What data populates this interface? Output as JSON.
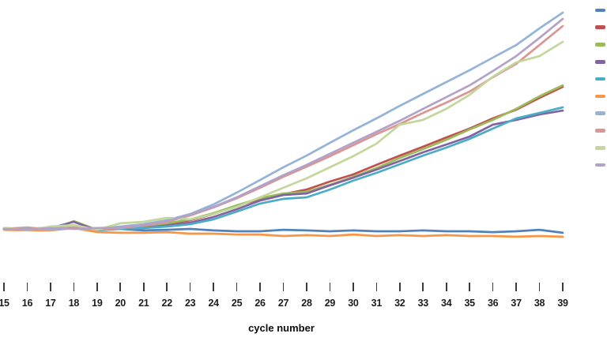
{
  "chart_data": {
    "type": "line",
    "title": "",
    "xlabel": "cycle number",
    "ylabel": "",
    "x": [
      15,
      16,
      17,
      18,
      19,
      20,
      21,
      22,
      23,
      24,
      25,
      26,
      27,
      28,
      29,
      30,
      31,
      32,
      33,
      34,
      35,
      36,
      37,
      38,
      39
    ],
    "xlim": [
      15,
      39
    ],
    "ylim": [
      -0.06,
      1.06
    ],
    "y_units": "relative fluorescence (arbitrary units; y-axis not shown in image)",
    "grid": false,
    "legend_position": "right-edge",
    "legend_labels_visible": false,
    "series": [
      {
        "id": "blue",
        "color": "#4F81BD",
        "role": "flat-baseline",
        "values": [
          0.0,
          0.0,
          -0.004,
          0.004,
          -0.004,
          0.0,
          -0.007,
          -0.004,
          0.0,
          -0.007,
          -0.011,
          -0.011,
          -0.004,
          -0.007,
          -0.011,
          -0.007,
          -0.011,
          -0.011,
          -0.007,
          -0.011,
          -0.011,
          -0.015,
          -0.011,
          -0.004,
          -0.018
        ]
      },
      {
        "id": "red",
        "color": "#C0504D",
        "role": "amplifying",
        "values": [
          0.0,
          0.004,
          0.0,
          0.007,
          0.0,
          0.004,
          0.011,
          0.022,
          0.04,
          0.069,
          0.106,
          0.139,
          0.161,
          0.182,
          0.219,
          0.252,
          0.296,
          0.339,
          0.38,
          0.423,
          0.464,
          0.511,
          0.551,
          0.606,
          0.657
        ]
      },
      {
        "id": "green",
        "color": "#9BBB59",
        "role": "amplifying",
        "values": [
          0.0,
          0.007,
          -0.004,
          0.036,
          -0.004,
          0.007,
          0.015,
          0.026,
          0.044,
          0.073,
          0.109,
          0.142,
          0.164,
          0.172,
          0.204,
          0.241,
          0.281,
          0.328,
          0.369,
          0.412,
          0.46,
          0.504,
          0.555,
          0.613,
          0.664
        ]
      },
      {
        "id": "purple",
        "color": "#8064A2",
        "role": "amplifying",
        "values": [
          0.0,
          -0.004,
          0.004,
          0.033,
          -0.007,
          0.007,
          0.004,
          0.015,
          0.029,
          0.055,
          0.091,
          0.131,
          0.157,
          0.164,
          0.201,
          0.237,
          0.274,
          0.314,
          0.354,
          0.39,
          0.427,
          0.482,
          0.504,
          0.529,
          0.547
        ]
      },
      {
        "id": "cyan",
        "color": "#4BACC6",
        "role": "amplifying",
        "values": [
          0.0,
          0.0,
          -0.004,
          0.004,
          -0.007,
          0.0,
          0.004,
          0.011,
          0.022,
          0.044,
          0.08,
          0.117,
          0.139,
          0.146,
          0.182,
          0.223,
          0.259,
          0.299,
          0.339,
          0.376,
          0.416,
          0.464,
          0.511,
          0.536,
          0.562
        ]
      },
      {
        "id": "orange",
        "color": "#F79646",
        "role": "flat-baseline",
        "values": [
          -0.004,
          -0.007,
          -0.007,
          0.004,
          -0.015,
          -0.018,
          -0.018,
          -0.015,
          -0.022,
          -0.022,
          -0.026,
          -0.026,
          -0.033,
          -0.029,
          -0.033,
          -0.026,
          -0.033,
          -0.029,
          -0.033,
          -0.029,
          -0.033,
          -0.033,
          -0.036,
          -0.033,
          -0.036
        ]
      },
      {
        "id": "light-blue",
        "color": "#95B3D7",
        "role": "amplifying",
        "values": [
          0.0,
          0.004,
          -0.004,
          0.007,
          0.0,
          0.011,
          0.022,
          0.04,
          0.069,
          0.113,
          0.168,
          0.226,
          0.285,
          0.339,
          0.398,
          0.456,
          0.511,
          0.569,
          0.624,
          0.679,
          0.734,
          0.792,
          0.85,
          0.927,
          1.0
        ]
      },
      {
        "id": "light-red",
        "color": "#D99694",
        "role": "amplifying",
        "values": [
          0.004,
          0.0,
          0.007,
          0.004,
          -0.004,
          0.004,
          0.015,
          0.033,
          0.062,
          0.099,
          0.142,
          0.19,
          0.241,
          0.288,
          0.336,
          0.387,
          0.438,
          0.485,
          0.536,
          0.584,
          0.635,
          0.701,
          0.763,
          0.85,
          0.938
        ]
      },
      {
        "id": "light-green",
        "color": "#C3D69B",
        "role": "amplifying",
        "values": [
          0.004,
          -0.007,
          0.011,
          0.018,
          -0.004,
          0.026,
          0.033,
          0.051,
          0.044,
          0.069,
          0.102,
          0.146,
          0.19,
          0.234,
          0.285,
          0.336,
          0.394,
          0.482,
          0.504,
          0.555,
          0.62,
          0.704,
          0.77,
          0.799,
          0.865
        ]
      },
      {
        "id": "light-purple",
        "color": "#B3A2C7",
        "role": "amplifying",
        "values": [
          0.0,
          -0.004,
          0.004,
          0.0,
          0.004,
          0.007,
          0.018,
          0.036,
          0.066,
          0.102,
          0.146,
          0.197,
          0.248,
          0.296,
          0.347,
          0.398,
          0.449,
          0.5,
          0.555,
          0.609,
          0.664,
          0.73,
          0.799,
          0.883,
          0.971
        ]
      }
    ]
  },
  "axis": {
    "x_tick_labels": [
      "15",
      "16",
      "17",
      "18",
      "19",
      "20",
      "21",
      "22",
      "23",
      "24",
      "25",
      "26",
      "27",
      "28",
      "29",
      "30",
      "31",
      "32",
      "33",
      "34",
      "35",
      "36",
      "37",
      "38",
      "39"
    ],
    "tick_color": "#3a3a3a",
    "label_color": "#1c1c1c"
  }
}
